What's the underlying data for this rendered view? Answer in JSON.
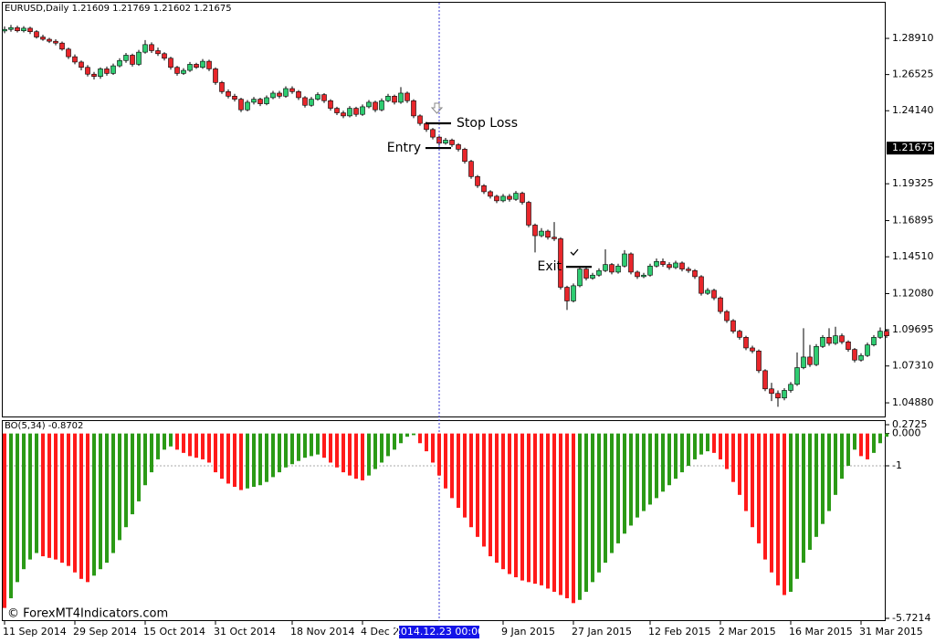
{
  "chart_data": [
    {
      "type": "candlestick",
      "title": "EURUSD,Daily  1.21609 1.21769 1.21602 1.21675",
      "up_color": "#2ecc71",
      "down_color": "#e8262b",
      "categories": [
        "11 Sep 2014",
        null,
        null,
        null,
        null,
        null,
        null,
        null,
        null,
        null,
        null,
        "29 Sep 2014",
        null,
        null,
        null,
        null,
        null,
        null,
        null,
        null,
        null,
        null,
        "15 Oct 2014",
        null,
        null,
        null,
        null,
        null,
        null,
        null,
        null,
        null,
        null,
        "31 Oct 2014",
        null,
        null,
        null,
        null,
        null,
        null,
        null,
        null,
        null,
        null,
        null,
        "18 Nov 2014",
        null,
        null,
        null,
        null,
        null,
        null,
        null,
        null,
        null,
        null,
        "4 Dec 2014",
        null,
        null,
        null,
        null,
        null,
        null,
        null,
        null,
        null,
        null,
        null,
        "2014.12.23 00:00",
        null,
        null,
        null,
        null,
        null,
        null,
        null,
        null,
        null,
        "9 Jan 2015",
        null,
        null,
        null,
        null,
        null,
        null,
        null,
        null,
        null,
        null,
        "27 Jan 2015",
        null,
        null,
        null,
        null,
        null,
        null,
        null,
        null,
        null,
        null,
        null,
        "12 Feb 2015",
        null,
        null,
        null,
        null,
        null,
        null,
        null,
        null,
        null,
        null,
        "2 Mar 2015",
        null,
        null,
        null,
        null,
        null,
        null,
        null,
        null,
        null,
        null,
        "16 Mar 2015",
        null,
        null,
        null,
        null,
        null,
        null,
        null,
        null,
        null,
        null,
        "31 Mar 2015",
        null,
        null,
        null,
        null
      ],
      "cursor": 68,
      "open": [
        1.294,
        1.295,
        1.2962,
        1.2941,
        1.2958,
        1.2935,
        1.29,
        1.2885,
        1.2872,
        1.286,
        1.282,
        1.277,
        1.2735,
        1.27,
        1.2655,
        1.264,
        1.269,
        1.266,
        1.271,
        1.2745,
        1.278,
        1.272,
        1.28,
        1.285,
        1.281,
        1.279,
        1.276,
        1.27,
        1.266,
        1.268,
        1.272,
        1.27,
        1.274,
        1.269,
        1.26,
        1.254,
        1.251,
        1.249,
        1.242,
        1.247,
        1.249,
        1.246,
        1.25,
        1.253,
        1.251,
        1.256,
        1.254,
        1.25,
        1.245,
        1.249,
        1.252,
        1.248,
        1.243,
        1.24,
        1.238,
        1.243,
        1.239,
        1.244,
        1.247,
        1.242,
        1.248,
        1.251,
        1.247,
        1.253,
        1.248,
        1.238,
        1.233,
        1.229,
        1.224,
        1.22,
        1.222,
        1.219,
        1.216,
        1.208,
        1.198,
        1.192,
        1.188,
        1.185,
        1.182,
        1.185,
        1.183,
        1.187,
        1.181,
        1.166,
        1.159,
        1.162,
        1.158,
        1.157,
        1.125,
        1.116,
        1.126,
        1.137,
        1.131,
        1.133,
        1.136,
        1.14,
        1.135,
        1.139,
        1.147,
        1.135,
        1.132,
        1.133,
        1.139,
        1.142,
        1.14,
        1.138,
        1.141,
        1.137,
        1.136,
        1.132,
        1.121,
        1.123,
        1.118,
        1.109,
        1.103,
        1.096,
        1.092,
        1.085,
        1.083,
        1.07,
        1.058,
        1.055,
        1.052,
        1.057,
        1.061,
        1.072,
        1.079,
        1.074,
        1.086,
        1.092,
        1.088,
        1.093,
        1.089,
        1.084,
        1.077,
        1.08,
        1.087,
        1.092,
        1.096
      ],
      "high": [
        1.297,
        1.298,
        1.2975,
        1.2972,
        1.2968,
        1.2945,
        1.2915,
        1.2895,
        1.2885,
        1.287,
        1.283,
        1.2785,
        1.2745,
        1.2715,
        1.267,
        1.27,
        1.2705,
        1.2725,
        1.276,
        1.2795,
        1.279,
        1.2815,
        1.288,
        1.2865,
        1.283,
        1.28,
        1.277,
        1.271,
        1.2695,
        1.2735,
        1.273,
        1.2755,
        1.275,
        1.27,
        1.261,
        1.2555,
        1.2525,
        1.25,
        1.2485,
        1.2505,
        1.25,
        1.2515,
        1.2545,
        1.2545,
        1.2575,
        1.2575,
        1.255,
        1.251,
        1.2505,
        1.2535,
        1.253,
        1.249,
        1.244,
        1.2415,
        1.2445,
        1.244,
        1.2455,
        1.2485,
        1.248,
        1.2495,
        1.2525,
        1.252,
        1.257,
        1.254,
        1.249,
        1.239,
        1.234,
        1.23,
        1.225,
        1.2235,
        1.223,
        1.22,
        1.217,
        1.209,
        1.199,
        1.193,
        1.189,
        1.186,
        1.1865,
        1.1865,
        1.1885,
        1.188,
        1.182,
        1.167,
        1.164,
        1.163,
        1.168,
        1.158,
        1.126,
        1.1275,
        1.1385,
        1.138,
        1.1345,
        1.1375,
        1.15,
        1.141,
        1.1405,
        1.1495,
        1.148,
        1.136,
        1.1345,
        1.1405,
        1.144,
        1.144,
        1.1415,
        1.1425,
        1.142,
        1.1385,
        1.137,
        1.133,
        1.1245,
        1.124,
        1.119,
        1.11,
        1.104,
        1.097,
        1.093,
        1.0865,
        1.084,
        1.071,
        1.062,
        1.057,
        1.0585,
        1.0625,
        1.082,
        1.098,
        1.087,
        1.0875,
        1.0935,
        1.098,
        1.099,
        1.0945,
        1.09,
        1.085,
        1.0815,
        1.0885,
        1.0935,
        1.0985,
        1.0975
      ],
      "low": [
        1.2925,
        1.2935,
        1.293,
        1.293,
        1.292,
        1.289,
        1.2875,
        1.286,
        1.2845,
        1.281,
        1.2755,
        1.272,
        1.268,
        1.264,
        1.262,
        1.2625,
        1.2645,
        1.265,
        1.27,
        1.273,
        1.2705,
        1.271,
        1.279,
        1.2795,
        1.2775,
        1.2745,
        1.2685,
        1.2645,
        1.265,
        1.267,
        1.269,
        1.269,
        1.2675,
        1.2585,
        1.2525,
        1.2495,
        1.2475,
        1.2405,
        1.241,
        1.2455,
        1.2445,
        1.245,
        1.249,
        1.2495,
        1.25,
        1.2525,
        1.2485,
        1.2435,
        1.244,
        1.248,
        1.2465,
        1.2415,
        1.2385,
        1.2365,
        1.237,
        1.2375,
        1.238,
        1.243,
        1.2405,
        1.241,
        1.247,
        1.2455,
        1.246,
        1.2465,
        1.2365,
        1.2315,
        1.2275,
        1.2225,
        1.2185,
        1.219,
        1.2175,
        1.2145,
        1.2065,
        1.1965,
        1.1905,
        1.1865,
        1.1835,
        1.1805,
        1.181,
        1.1815,
        1.182,
        1.1795,
        1.1645,
        1.148,
        1.158,
        1.1565,
        1.1555,
        1.1235,
        1.11,
        1.115,
        1.125,
        1.1295,
        1.13,
        1.132,
        1.135,
        1.1335,
        1.134,
        1.138,
        1.1335,
        1.1305,
        1.131,
        1.132,
        1.138,
        1.1385,
        1.1365,
        1.137,
        1.1355,
        1.1345,
        1.1305,
        1.1195,
        1.12,
        1.1165,
        1.1075,
        1.1015,
        1.0945,
        1.0905,
        1.0835,
        1.0815,
        1.0685,
        1.0565,
        1.05,
        1.0462,
        1.0505,
        1.0555,
        1.06,
        1.071,
        1.0725,
        1.073,
        1.085,
        1.0865,
        1.087,
        1.0875,
        1.0825,
        1.0755,
        1.076,
        1.079,
        1.086,
        1.091,
        1.0915
      ],
      "close": [
        1.295,
        1.2962,
        1.2941,
        1.2958,
        1.2935,
        1.29,
        1.2885,
        1.2872,
        1.286,
        1.282,
        1.277,
        1.2735,
        1.27,
        1.2655,
        1.264,
        1.269,
        1.266,
        1.271,
        1.2745,
        1.278,
        1.272,
        1.28,
        1.285,
        1.281,
        1.279,
        1.276,
        1.27,
        1.266,
        1.268,
        1.272,
        1.27,
        1.274,
        1.269,
        1.26,
        1.254,
        1.251,
        1.249,
        1.242,
        1.247,
        1.249,
        1.246,
        1.25,
        1.253,
        1.251,
        1.256,
        1.254,
        1.25,
        1.245,
        1.249,
        1.252,
        1.248,
        1.243,
        1.24,
        1.238,
        1.243,
        1.239,
        1.244,
        1.247,
        1.242,
        1.248,
        1.251,
        1.247,
        1.253,
        1.248,
        1.238,
        1.233,
        1.229,
        1.224,
        1.22,
        1.222,
        1.219,
        1.216,
        1.208,
        1.198,
        1.192,
        1.188,
        1.185,
        1.182,
        1.185,
        1.183,
        1.187,
        1.181,
        1.166,
        1.159,
        1.162,
        1.158,
        1.157,
        1.125,
        1.116,
        1.126,
        1.137,
        1.131,
        1.133,
        1.136,
        1.14,
        1.135,
        1.139,
        1.147,
        1.135,
        1.132,
        1.133,
        1.139,
        1.142,
        1.14,
        1.138,
        1.141,
        1.137,
        1.136,
        1.132,
        1.121,
        1.123,
        1.118,
        1.109,
        1.103,
        1.096,
        1.092,
        1.085,
        1.083,
        1.07,
        1.058,
        1.055,
        1.052,
        1.057,
        1.061,
        1.072,
        1.079,
        1.074,
        1.086,
        1.092,
        1.088,
        1.093,
        1.089,
        1.084,
        1.077,
        1.08,
        1.087,
        1.092,
        1.096,
        1.093
      ],
      "ylim": [
        1.0392,
        1.3126
      ],
      "yticks": [
        {
          "value": 1.2891,
          "label": "1.28910"
        },
        1.26525,
        {
          "value": 1.2414,
          "label": "1.24140"
        },
        1.19325,
        1.16895,
        {
          "value": 1.1451,
          "label": "1.14510"
        },
        {
          "value": 1.1208,
          "label": "1.12080"
        },
        1.09695,
        {
          "value": 1.0731,
          "label": "1.07310"
        },
        {
          "value": 1.0488,
          "label": "1.04880"
        }
      ],
      "current_price": 1.21675,
      "annotations": [
        {
          "text": "Stop Loss",
          "value": 1.2331,
          "bar": 66,
          "side": "right"
        },
        {
          "text": "Entry",
          "value": 1.2168,
          "bar": 66,
          "side": "left"
        },
        {
          "text": "Exit",
          "value": 1.1385,
          "bar": 88,
          "side": "left"
        }
      ],
      "watermark": "© ForexMT4Indicators.com"
    },
    {
      "type": "histogram",
      "title": "BO(5,34) -0.8702",
      "up_color": "#2b9a16",
      "down_color": "#ff1a1a",
      "values": [
        -5.4,
        -5.1,
        -4.6,
        -4.2,
        -3.9,
        -3.7,
        -3.8,
        -3.85,
        -3.9,
        -4.0,
        -4.1,
        -4.3,
        -4.5,
        -4.6,
        -4.4,
        -4.2,
        -4.0,
        -3.7,
        -3.3,
        -2.9,
        -2.5,
        -2.1,
        -1.6,
        -1.2,
        -0.8,
        -0.5,
        -0.4,
        -0.5,
        -0.6,
        -0.7,
        -0.75,
        -0.8,
        -0.9,
        -1.2,
        -1.4,
        -1.55,
        -1.65,
        -1.75,
        -1.7,
        -1.65,
        -1.6,
        -1.5,
        -1.35,
        -1.2,
        -1.05,
        -0.95,
        -0.85,
        -0.75,
        -0.7,
        -0.65,
        -0.75,
        -0.9,
        -1.05,
        -1.2,
        -1.3,
        -1.4,
        -1.45,
        -1.3,
        -1.1,
        -0.9,
        -0.7,
        -0.5,
        -0.3,
        -0.1,
        -0.05,
        -0.3,
        -0.55,
        -0.9,
        -1.3,
        -1.7,
        -2.0,
        -2.3,
        -2.6,
        -2.9,
        -3.2,
        -3.5,
        -3.8,
        -4.0,
        -4.2,
        -4.35,
        -4.45,
        -4.55,
        -4.6,
        -4.65,
        -4.7,
        -4.8,
        -4.9,
        -5.0,
        -5.1,
        -5.25,
        -5.15,
        -4.9,
        -4.6,
        -4.3,
        -4.0,
        -3.7,
        -3.4,
        -3.1,
        -2.85,
        -2.6,
        -2.4,
        -2.2,
        -2.0,
        -1.8,
        -1.6,
        -1.4,
        -1.2,
        -1.0,
        -0.8,
        -0.65,
        -0.55,
        -0.6,
        -0.8,
        -1.1,
        -1.5,
        -1.9,
        -2.4,
        -2.9,
        -3.4,
        -3.9,
        -4.3,
        -4.7,
        -5.0,
        -4.9,
        -4.5,
        -4.0,
        -3.6,
        -3.2,
        -2.8,
        -2.4,
        -1.9,
        -1.4,
        -1.0,
        -0.5,
        -0.7,
        -0.8,
        -0.6,
        -0.3,
        -0.1
      ],
      "ylim": [
        -5.7214,
        0.2725
      ],
      "yticks": [
        0.2725,
        {
          "value": 0,
          "label": "0.000"
        },
        -1,
        -5.7214
      ],
      "level": -1
    }
  ]
}
